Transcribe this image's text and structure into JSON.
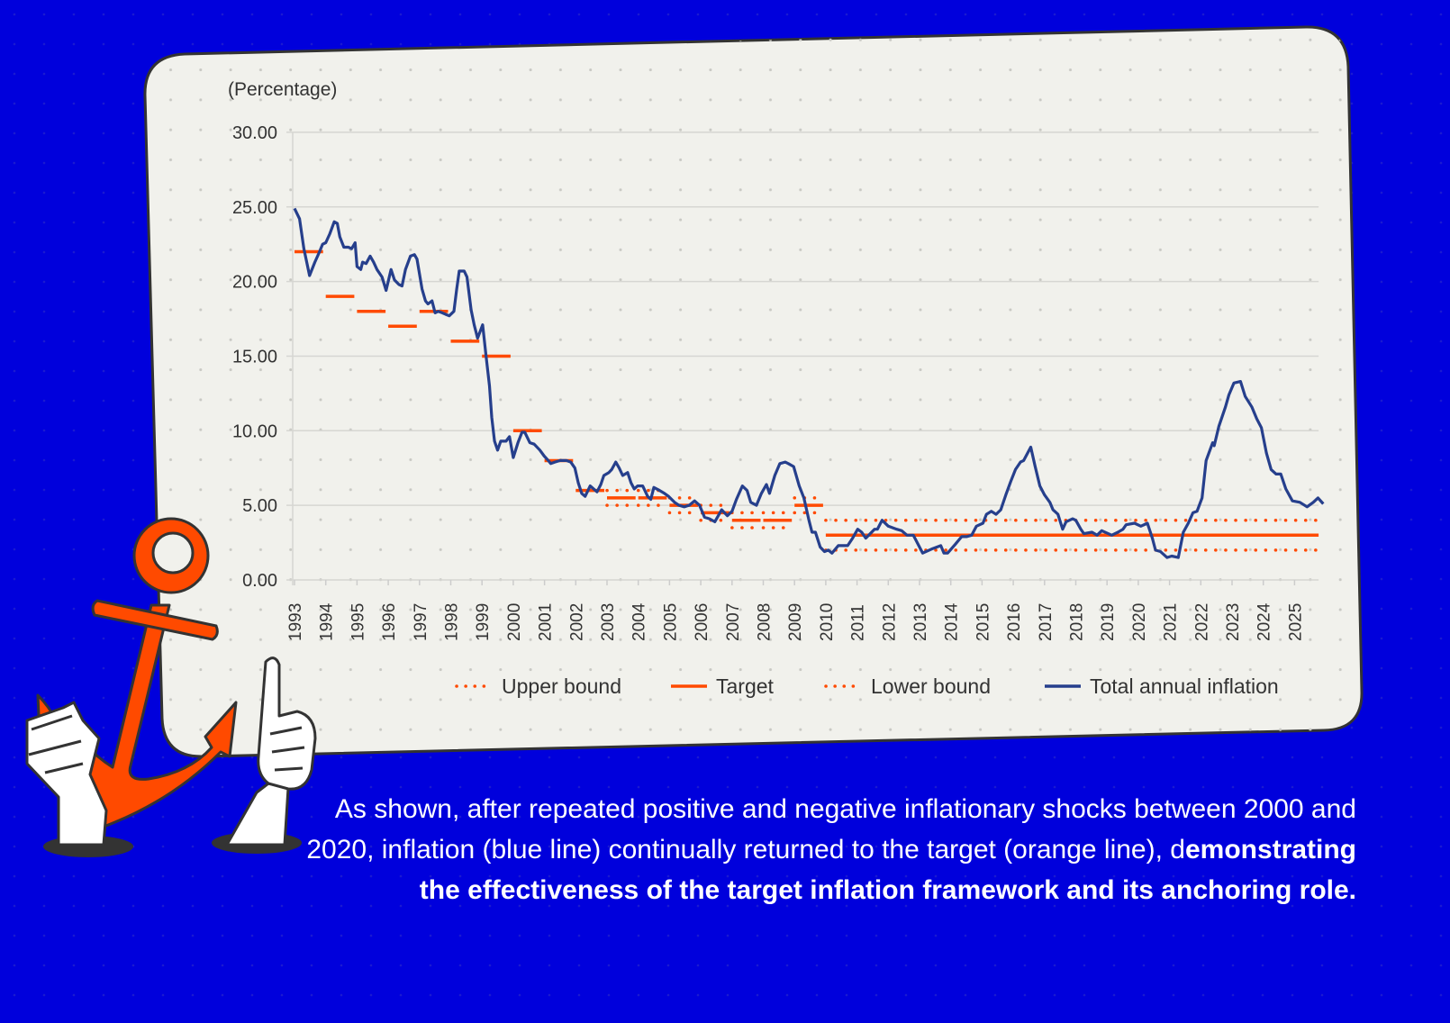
{
  "colors": {
    "background": "#0000dc",
    "panel": "#f1f1ec",
    "inflation_line": "#263f8c",
    "target": "#ff4a00",
    "anchor": "#ff4a00"
  },
  "illustration": {
    "icons": [
      "anchor-icon",
      "hand-holding-icon",
      "thumbs-up-icon"
    ]
  },
  "caption": {
    "normal": "As shown, after repeated positive and negative inflationary shocks between 2000 and 2020, inflation (blue line) continually returned to the target (orange line), d",
    "bold": "emonstrating the effectiveness of the target inflation framework and its anchoring role."
  },
  "chart_data": {
    "type": "line",
    "title": "",
    "ylabel": "(Percentage)",
    "xlabel": "",
    "ylim": [
      0,
      30
    ],
    "xlim": [
      1993,
      2026
    ],
    "yticks": [
      "0.00",
      "5.00",
      "10.00",
      "15.00",
      "20.00",
      "25.00",
      "30.00"
    ],
    "xticks": [
      "1993",
      "1994",
      "1995",
      "1996",
      "1997",
      "1998",
      "1999",
      "2000",
      "2001",
      "2002",
      "2003",
      "2004",
      "2005",
      "2006",
      "2007",
      "2008",
      "2009",
      "2010",
      "2011",
      "2012",
      "2013",
      "2014",
      "2015",
      "2016",
      "2017",
      "2018",
      "2019",
      "2020",
      "2021",
      "2022",
      "2023",
      "2024",
      "2025"
    ],
    "grid": "horizontal",
    "legend_position": "bottom",
    "legend": [
      {
        "name": "Upper bound",
        "style": "dotted"
      },
      {
        "name": "Target",
        "style": "solid"
      },
      {
        "name": "Lower bound",
        "style": "dotted"
      },
      {
        "name": "Total annual inflation",
        "style": "line"
      }
    ],
    "targets": [
      {
        "year": 1993,
        "target": 22
      },
      {
        "year": 1994,
        "target": 19
      },
      {
        "year": 1995,
        "target": 18
      },
      {
        "year": 1996,
        "target": 17
      },
      {
        "year": 1997,
        "target": 18
      },
      {
        "year": 1998,
        "target": 16
      },
      {
        "year": 1999,
        "target": 15
      },
      {
        "year": 2000,
        "target": 10
      },
      {
        "year": 2001,
        "target": 8
      },
      {
        "year": 2002,
        "target": 6
      },
      {
        "year": 2003,
        "target": 5.5,
        "upper": 6,
        "lower": 5
      },
      {
        "year": 2004,
        "target": 5.5,
        "upper": 6,
        "lower": 5
      },
      {
        "year": 2005,
        "target": 5,
        "upper": 5.5,
        "lower": 4.5
      },
      {
        "year": 2006,
        "target": 4.5,
        "upper": 5,
        "lower": 4
      },
      {
        "year": 2007,
        "target": 4,
        "upper": 4.5,
        "lower": 3.5
      },
      {
        "year": 2008,
        "target": 4,
        "upper": 4.5,
        "lower": 3.5
      },
      {
        "year": 2009,
        "target": 5,
        "upper": 5.5,
        "lower": 4.5
      },
      {
        "year": 2010,
        "to": 2026,
        "target": 3,
        "upper": 4,
        "lower": 2
      }
    ],
    "series": [
      {
        "name": "Total annual inflation",
        "points": [
          [
            1993.0,
            24.9
          ],
          [
            1993.16,
            24.2
          ],
          [
            1993.3,
            22.2
          ],
          [
            1993.48,
            20.4
          ],
          [
            1993.65,
            21.3
          ],
          [
            1993.8,
            22.0
          ],
          [
            1993.9,
            22.5
          ],
          [
            1994.0,
            22.6
          ],
          [
            1994.13,
            23.2
          ],
          [
            1994.27,
            24.0
          ],
          [
            1994.37,
            23.9
          ],
          [
            1994.45,
            23.0
          ],
          [
            1994.58,
            22.3
          ],
          [
            1994.72,
            22.3
          ],
          [
            1994.83,
            22.2
          ],
          [
            1994.94,
            22.6
          ],
          [
            1995.0,
            21.0
          ],
          [
            1995.12,
            20.8
          ],
          [
            1995.18,
            21.3
          ],
          [
            1995.29,
            21.2
          ],
          [
            1995.42,
            21.7
          ],
          [
            1995.53,
            21.3
          ],
          [
            1995.64,
            20.8
          ],
          [
            1995.8,
            20.3
          ],
          [
            1995.93,
            19.4
          ],
          [
            1996.09,
            20.8
          ],
          [
            1996.2,
            20.1
          ],
          [
            1996.34,
            19.8
          ],
          [
            1996.44,
            19.7
          ],
          [
            1996.55,
            20.8
          ],
          [
            1996.71,
            21.7
          ],
          [
            1996.84,
            21.8
          ],
          [
            1996.92,
            21.5
          ],
          [
            1997.08,
            19.5
          ],
          [
            1997.19,
            18.7
          ],
          [
            1997.27,
            18.5
          ],
          [
            1997.4,
            18.7
          ],
          [
            1997.5,
            17.9
          ],
          [
            1997.6,
            18.0
          ],
          [
            1997.73,
            17.9
          ],
          [
            1997.84,
            17.8
          ],
          [
            1997.95,
            17.7
          ],
          [
            1998.1,
            18.0
          ],
          [
            1998.19,
            19.5
          ],
          [
            1998.27,
            20.7
          ],
          [
            1998.43,
            20.7
          ],
          [
            1998.52,
            20.3
          ],
          [
            1998.65,
            18.1
          ],
          [
            1998.75,
            17.1
          ],
          [
            1998.86,
            16.2
          ],
          [
            1999.02,
            17.1
          ],
          [
            1999.13,
            15.0
          ],
          [
            1999.24,
            13.0
          ],
          [
            1999.31,
            10.9
          ],
          [
            1999.4,
            9.3
          ],
          [
            1999.5,
            8.7
          ],
          [
            1999.6,
            9.3
          ],
          [
            1999.77,
            9.3
          ],
          [
            1999.88,
            9.6
          ],
          [
            2000.0,
            8.2
          ],
          [
            2000.15,
            9.2
          ],
          [
            2000.28,
            9.9
          ],
          [
            2000.37,
            9.9
          ],
          [
            2000.53,
            9.2
          ],
          [
            2000.67,
            9.1
          ],
          [
            2000.85,
            8.7
          ],
          [
            2000.99,
            8.3
          ],
          [
            2001.12,
            8.0
          ],
          [
            2001.2,
            7.8
          ],
          [
            2001.33,
            7.9
          ],
          [
            2001.5,
            8.0
          ],
          [
            2001.7,
            8.0
          ],
          [
            2001.84,
            7.9
          ],
          [
            2001.97,
            7.5
          ],
          [
            2002.08,
            6.5
          ],
          [
            2002.19,
            5.8
          ],
          [
            2002.3,
            5.6
          ],
          [
            2002.46,
            6.3
          ],
          [
            2002.68,
            5.9
          ],
          [
            2002.8,
            6.4
          ],
          [
            2002.9,
            7.0
          ],
          [
            2003.06,
            7.2
          ],
          [
            2003.15,
            7.4
          ],
          [
            2003.28,
            7.9
          ],
          [
            2003.39,
            7.5
          ],
          [
            2003.5,
            7.0
          ],
          [
            2003.66,
            7.2
          ],
          [
            2003.77,
            6.5
          ],
          [
            2003.87,
            6.1
          ],
          [
            2003.98,
            6.3
          ],
          [
            2004.14,
            6.3
          ],
          [
            2004.3,
            5.6
          ],
          [
            2004.4,
            5.4
          ],
          [
            2004.5,
            6.2
          ],
          [
            2004.68,
            6.0
          ],
          [
            2004.84,
            5.8
          ],
          [
            2004.97,
            5.6
          ],
          [
            2005.16,
            5.2
          ],
          [
            2005.3,
            5.0
          ],
          [
            2005.47,
            4.9
          ],
          [
            2005.63,
            5.0
          ],
          [
            2005.8,
            5.3
          ],
          [
            2005.96,
            5.0
          ],
          [
            2006.12,
            4.2
          ],
          [
            2006.28,
            4.1
          ],
          [
            2006.45,
            3.9
          ],
          [
            2006.67,
            4.7
          ],
          [
            2006.85,
            4.3
          ],
          [
            2007.0,
            4.6
          ],
          [
            2007.14,
            5.4
          ],
          [
            2007.33,
            6.3
          ],
          [
            2007.48,
            6.0
          ],
          [
            2007.6,
            5.2
          ],
          [
            2007.78,
            5.0
          ],
          [
            2007.94,
            5.8
          ],
          [
            2008.1,
            6.4
          ],
          [
            2008.2,
            5.8
          ],
          [
            2008.37,
            7.0
          ],
          [
            2008.53,
            7.8
          ],
          [
            2008.7,
            7.9
          ],
          [
            2008.8,
            7.8
          ],
          [
            2008.97,
            7.6
          ],
          [
            2009.15,
            6.3
          ],
          [
            2009.3,
            5.5
          ],
          [
            2009.46,
            4.0
          ],
          [
            2009.56,
            3.2
          ],
          [
            2009.67,
            3.2
          ],
          [
            2009.82,
            2.2
          ],
          [
            2009.96,
            1.9
          ],
          [
            2010.08,
            2.0
          ],
          [
            2010.2,
            1.8
          ],
          [
            2010.4,
            2.3
          ],
          [
            2010.7,
            2.3
          ],
          [
            2010.86,
            2.8
          ],
          [
            2011.02,
            3.4
          ],
          [
            2011.15,
            3.2
          ],
          [
            2011.28,
            2.8
          ],
          [
            2011.56,
            3.4
          ],
          [
            2011.65,
            3.4
          ],
          [
            2011.8,
            4.0
          ],
          [
            2012.0,
            3.6
          ],
          [
            2012.27,
            3.4
          ],
          [
            2012.43,
            3.3
          ],
          [
            2012.6,
            3.0
          ],
          [
            2012.8,
            3.0
          ],
          [
            2012.95,
            2.4
          ],
          [
            2013.1,
            1.8
          ],
          [
            2013.42,
            2.1
          ],
          [
            2013.68,
            2.3
          ],
          [
            2013.78,
            1.8
          ],
          [
            2013.9,
            1.8
          ],
          [
            2014.15,
            2.4
          ],
          [
            2014.35,
            2.9
          ],
          [
            2014.5,
            2.9
          ],
          [
            2014.67,
            3.0
          ],
          [
            2014.82,
            3.6
          ],
          [
            2015.03,
            3.8
          ],
          [
            2015.14,
            4.4
          ],
          [
            2015.3,
            4.6
          ],
          [
            2015.45,
            4.4
          ],
          [
            2015.6,
            4.7
          ],
          [
            2015.76,
            5.7
          ],
          [
            2015.92,
            6.6
          ],
          [
            2016.07,
            7.4
          ],
          [
            2016.23,
            7.9
          ],
          [
            2016.33,
            8.0
          ],
          [
            2016.56,
            8.9
          ],
          [
            2016.7,
            7.6
          ],
          [
            2016.85,
            6.3
          ],
          [
            2017.0,
            5.7
          ],
          [
            2017.17,
            5.2
          ],
          [
            2017.27,
            4.7
          ],
          [
            2017.43,
            4.4
          ],
          [
            2017.58,
            3.4
          ],
          [
            2017.69,
            3.9
          ],
          [
            2017.9,
            4.1
          ],
          [
            2018.0,
            4.0
          ],
          [
            2018.16,
            3.4
          ],
          [
            2018.26,
            3.1
          ],
          [
            2018.52,
            3.2
          ],
          [
            2018.68,
            3.0
          ],
          [
            2018.83,
            3.3
          ],
          [
            2019.15,
            3.0
          ],
          [
            2019.35,
            3.2
          ],
          [
            2019.51,
            3.4
          ],
          [
            2019.61,
            3.7
          ],
          [
            2019.88,
            3.8
          ],
          [
            2020.08,
            3.6
          ],
          [
            2020.29,
            3.8
          ],
          [
            2020.45,
            2.8
          ],
          [
            2020.55,
            2.0
          ],
          [
            2020.71,
            1.9
          ],
          [
            2020.92,
            1.5
          ],
          [
            2021.07,
            1.6
          ],
          [
            2021.28,
            1.5
          ],
          [
            2021.44,
            3.2
          ],
          [
            2021.6,
            3.8
          ],
          [
            2021.75,
            4.5
          ],
          [
            2021.88,
            4.6
          ],
          [
            2022.04,
            5.5
          ],
          [
            2022.17,
            8.0
          ],
          [
            2022.38,
            9.2
          ],
          [
            2022.43,
            9.0
          ],
          [
            2022.58,
            10.3
          ],
          [
            2022.79,
            11.6
          ],
          [
            2022.9,
            12.4
          ],
          [
            2023.06,
            13.2
          ],
          [
            2023.27,
            13.3
          ],
          [
            2023.42,
            12.3
          ],
          [
            2023.63,
            11.6
          ],
          [
            2023.79,
            10.8
          ],
          [
            2023.94,
            10.2
          ],
          [
            2024.1,
            8.5
          ],
          [
            2024.25,
            7.4
          ],
          [
            2024.41,
            7.1
          ],
          [
            2024.56,
            7.1
          ],
          [
            2024.72,
            6.1
          ],
          [
            2024.93,
            5.3
          ],
          [
            2025.17,
            5.2
          ],
          [
            2025.4,
            4.9
          ],
          [
            2025.6,
            5.2
          ],
          [
            2025.75,
            5.5
          ],
          [
            2025.92,
            5.1
          ]
        ]
      }
    ]
  }
}
